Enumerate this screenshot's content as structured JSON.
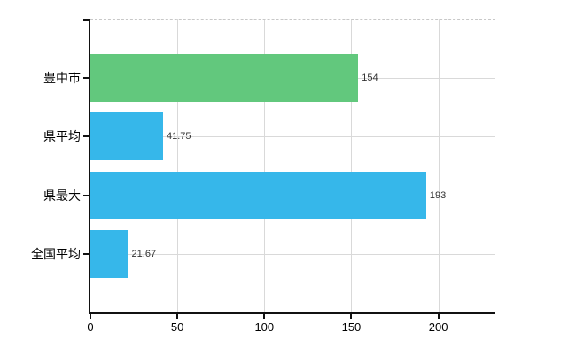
{
  "chart_data": {
    "type": "bar",
    "orientation": "horizontal",
    "title": "",
    "categories": [
      "豊中市",
      "県平均",
      "県最大",
      "全国平均"
    ],
    "values": [
      154,
      41.75,
      193,
      21.67
    ],
    "value_labels": [
      "154",
      "41.75",
      "193",
      "21.67"
    ],
    "bar_colors": [
      "#62c87d",
      "#36b7ea",
      "#36b7ea",
      "#36b7ea"
    ],
    "x_ticks": [
      0,
      50,
      100,
      150,
      200
    ],
    "xlim": [
      0,
      232.8
    ],
    "grid": true,
    "legend": "none",
    "styles": {
      "background": "#ffffff",
      "axis_color": "#111111",
      "grid_color": "#d9d9d9",
      "top_border_color": "#c8c8c8",
      "category_label_color": "#000000",
      "value_label_color": "#333333"
    }
  }
}
